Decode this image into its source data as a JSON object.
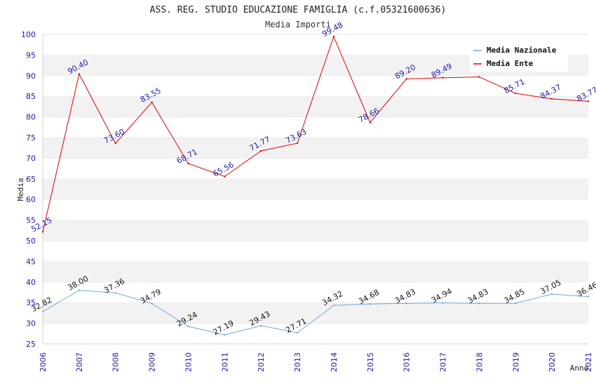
{
  "chart_data": {
    "type": "line",
    "title": "ASS. REG. STUDIO EDUCAZIONE FAMIGLIA (c.f.05321600636)",
    "subtitle": "Media Importi",
    "xlabel": "Anno",
    "ylabel": "Media",
    "x": [
      "2006",
      "2007",
      "2008",
      "2009",
      "2010",
      "2011",
      "2012",
      "2013",
      "2014",
      "2015",
      "2016",
      "2017",
      "2018",
      "2019",
      "2020",
      "2021"
    ],
    "ylim": [
      25,
      100
    ],
    "yticks": [
      "25",
      "30",
      "35",
      "40",
      "45",
      "50",
      "55",
      "60",
      "65",
      "70",
      "75",
      "80",
      "85",
      "90",
      "95",
      "100"
    ],
    "grid": "horizontal alternating bands",
    "legend_position": "top-right",
    "series": [
      {
        "name": "Media Nazionale",
        "color": "#6fa8dc",
        "values": [
          32.82,
          38.0,
          37.36,
          34.79,
          29.24,
          27.19,
          29.43,
          27.71,
          34.32,
          34.68,
          34.83,
          34.94,
          34.83,
          34.85,
          37.05,
          36.46
        ],
        "labels": [
          "32.82",
          "38.00",
          "37.36",
          "34.79",
          "29.24",
          "27.19",
          "29.43",
          "27.71",
          "34.32",
          "34.68",
          "34.83",
          "34.94",
          "34.83",
          "34.85",
          "37.05",
          "36.46"
        ]
      },
      {
        "name": "Media Ente",
        "color": "#e00000",
        "values": [
          52.15,
          90.4,
          73.6,
          83.55,
          68.71,
          65.56,
          71.77,
          73.63,
          99.48,
          78.66,
          89.2,
          89.49,
          89.7,
          85.71,
          84.37,
          83.77
        ],
        "labels": [
          "52.15",
          "90.40",
          "73.60",
          "83.55",
          "68.71",
          "65.56",
          "71.77",
          "73.63",
          "99.48",
          "78.66",
          "89.20",
          "89.49",
          "",
          "85.71",
          "84.37",
          "83.77"
        ]
      }
    ]
  }
}
